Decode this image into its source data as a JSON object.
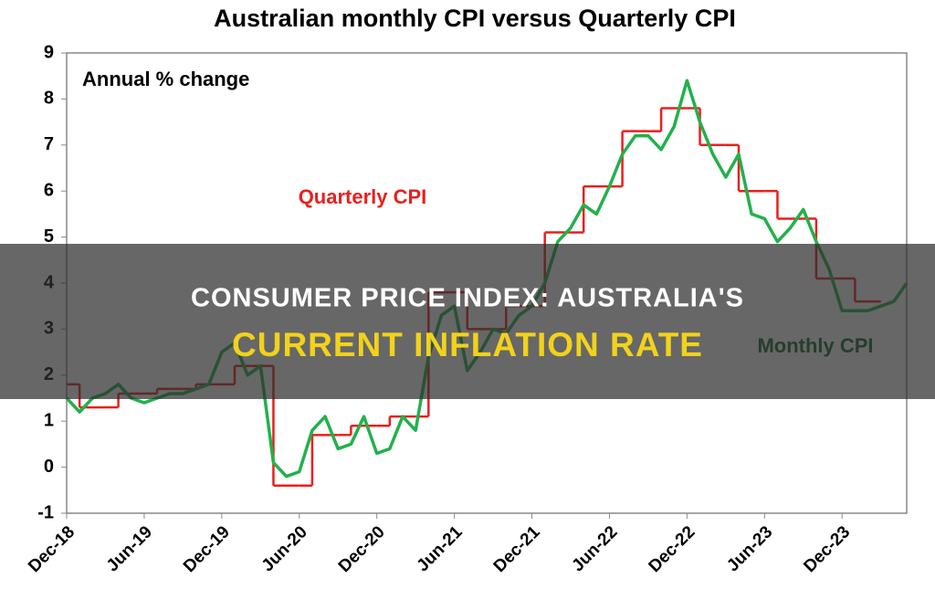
{
  "chart_data": {
    "type": "line",
    "title": "Australian monthly CPI versus Quarterly CPI",
    "annotation": "Annual % change",
    "categories": [
      "Dec-18",
      null,
      null,
      null,
      null,
      null,
      "Jun-19",
      null,
      null,
      null,
      null,
      null,
      "Dec-19",
      null,
      null,
      null,
      null,
      null,
      "Jun-20",
      null,
      null,
      null,
      null,
      null,
      "Dec-20",
      null,
      null,
      null,
      null,
      null,
      "Jun-21",
      null,
      null,
      null,
      null,
      null,
      "Dec-21",
      null,
      null,
      null,
      null,
      null,
      "Jun-22",
      null,
      null,
      null,
      null,
      null,
      "Dec-22",
      null,
      null,
      null,
      null,
      null,
      "Jun-23",
      null,
      null,
      null,
      null,
      null,
      "Dec-23",
      null,
      null,
      null,
      null,
      null
    ],
    "series": [
      {
        "name": "Quarterly CPI",
        "color": "#e8201c",
        "step": true,
        "values": [
          1.8,
          null,
          null,
          1.3,
          null,
          null,
          1.6,
          null,
          null,
          1.7,
          null,
          null,
          1.8,
          null,
          null,
          2.2,
          null,
          null,
          -0.4,
          null,
          null,
          0.7,
          null,
          null,
          0.9,
          null,
          null,
          1.1,
          null,
          null,
          3.8,
          null,
          null,
          3.0,
          null,
          null,
          3.5,
          null,
          null,
          5.1,
          null,
          null,
          6.1,
          null,
          null,
          7.3,
          null,
          null,
          7.8,
          null,
          null,
          7.0,
          null,
          null,
          6.0,
          null,
          null,
          5.4,
          null,
          null,
          4.1,
          null,
          null,
          3.6,
          null,
          null
        ]
      },
      {
        "name": "Monthly CPI",
        "color": "#22b14c",
        "label_color": "#17692f",
        "values": [
          1.5,
          1.2,
          1.5,
          1.6,
          1.8,
          1.5,
          1.4,
          1.5,
          1.6,
          1.6,
          1.7,
          1.8,
          2.5,
          2.7,
          2.0,
          2.2,
          0.1,
          -0.2,
          -0.1,
          0.8,
          1.1,
          0.4,
          0.5,
          1.1,
          0.3,
          0.4,
          1.1,
          0.8,
          2.4,
          3.3,
          3.5,
          2.1,
          2.5,
          3.0,
          2.9,
          3.3,
          3.5,
          4.0,
          4.9,
          5.2,
          5.7,
          5.5,
          6.1,
          6.8,
          7.2,
          7.2,
          6.9,
          7.4,
          8.4,
          7.5,
          6.8,
          6.3,
          6.8,
          5.5,
          5.4,
          4.9,
          5.2,
          5.6,
          4.9,
          4.3,
          3.4,
          3.4,
          3.4,
          3.5,
          3.6,
          4.0
        ]
      }
    ],
    "ylim": [
      -1,
      9
    ],
    "yticks": [
      -1,
      0,
      1,
      2,
      3,
      4,
      5,
      6,
      7,
      8,
      9
    ]
  },
  "overlay": {
    "line1": "CONSUMER PRICE INDEX: AUSTRALIA'S",
    "line2": "CURRENT INFLATION RATE"
  }
}
